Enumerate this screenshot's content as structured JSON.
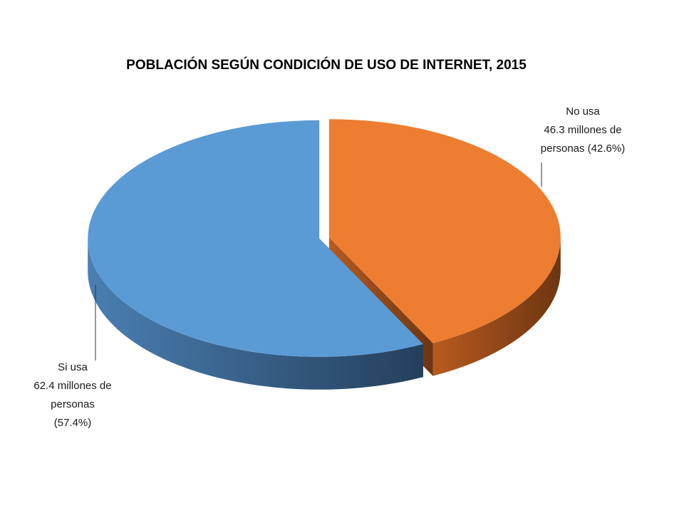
{
  "chart_data": {
    "type": "pie",
    "title": "POBLACIÓN SEGÚN CONDICIÓN DE USO DE INTERNET, 2015",
    "categories": [
      "No usa",
      "Si usa"
    ],
    "values": [
      42.6,
      57.4
    ],
    "value_labels": [
      [
        "46.3 millones de",
        "personas (42.6%)"
      ],
      [
        "62.4 millones de",
        "personas",
        "(57.4%)"
      ]
    ],
    "colors": [
      "#ED7D31",
      "#5B9BD5"
    ]
  }
}
